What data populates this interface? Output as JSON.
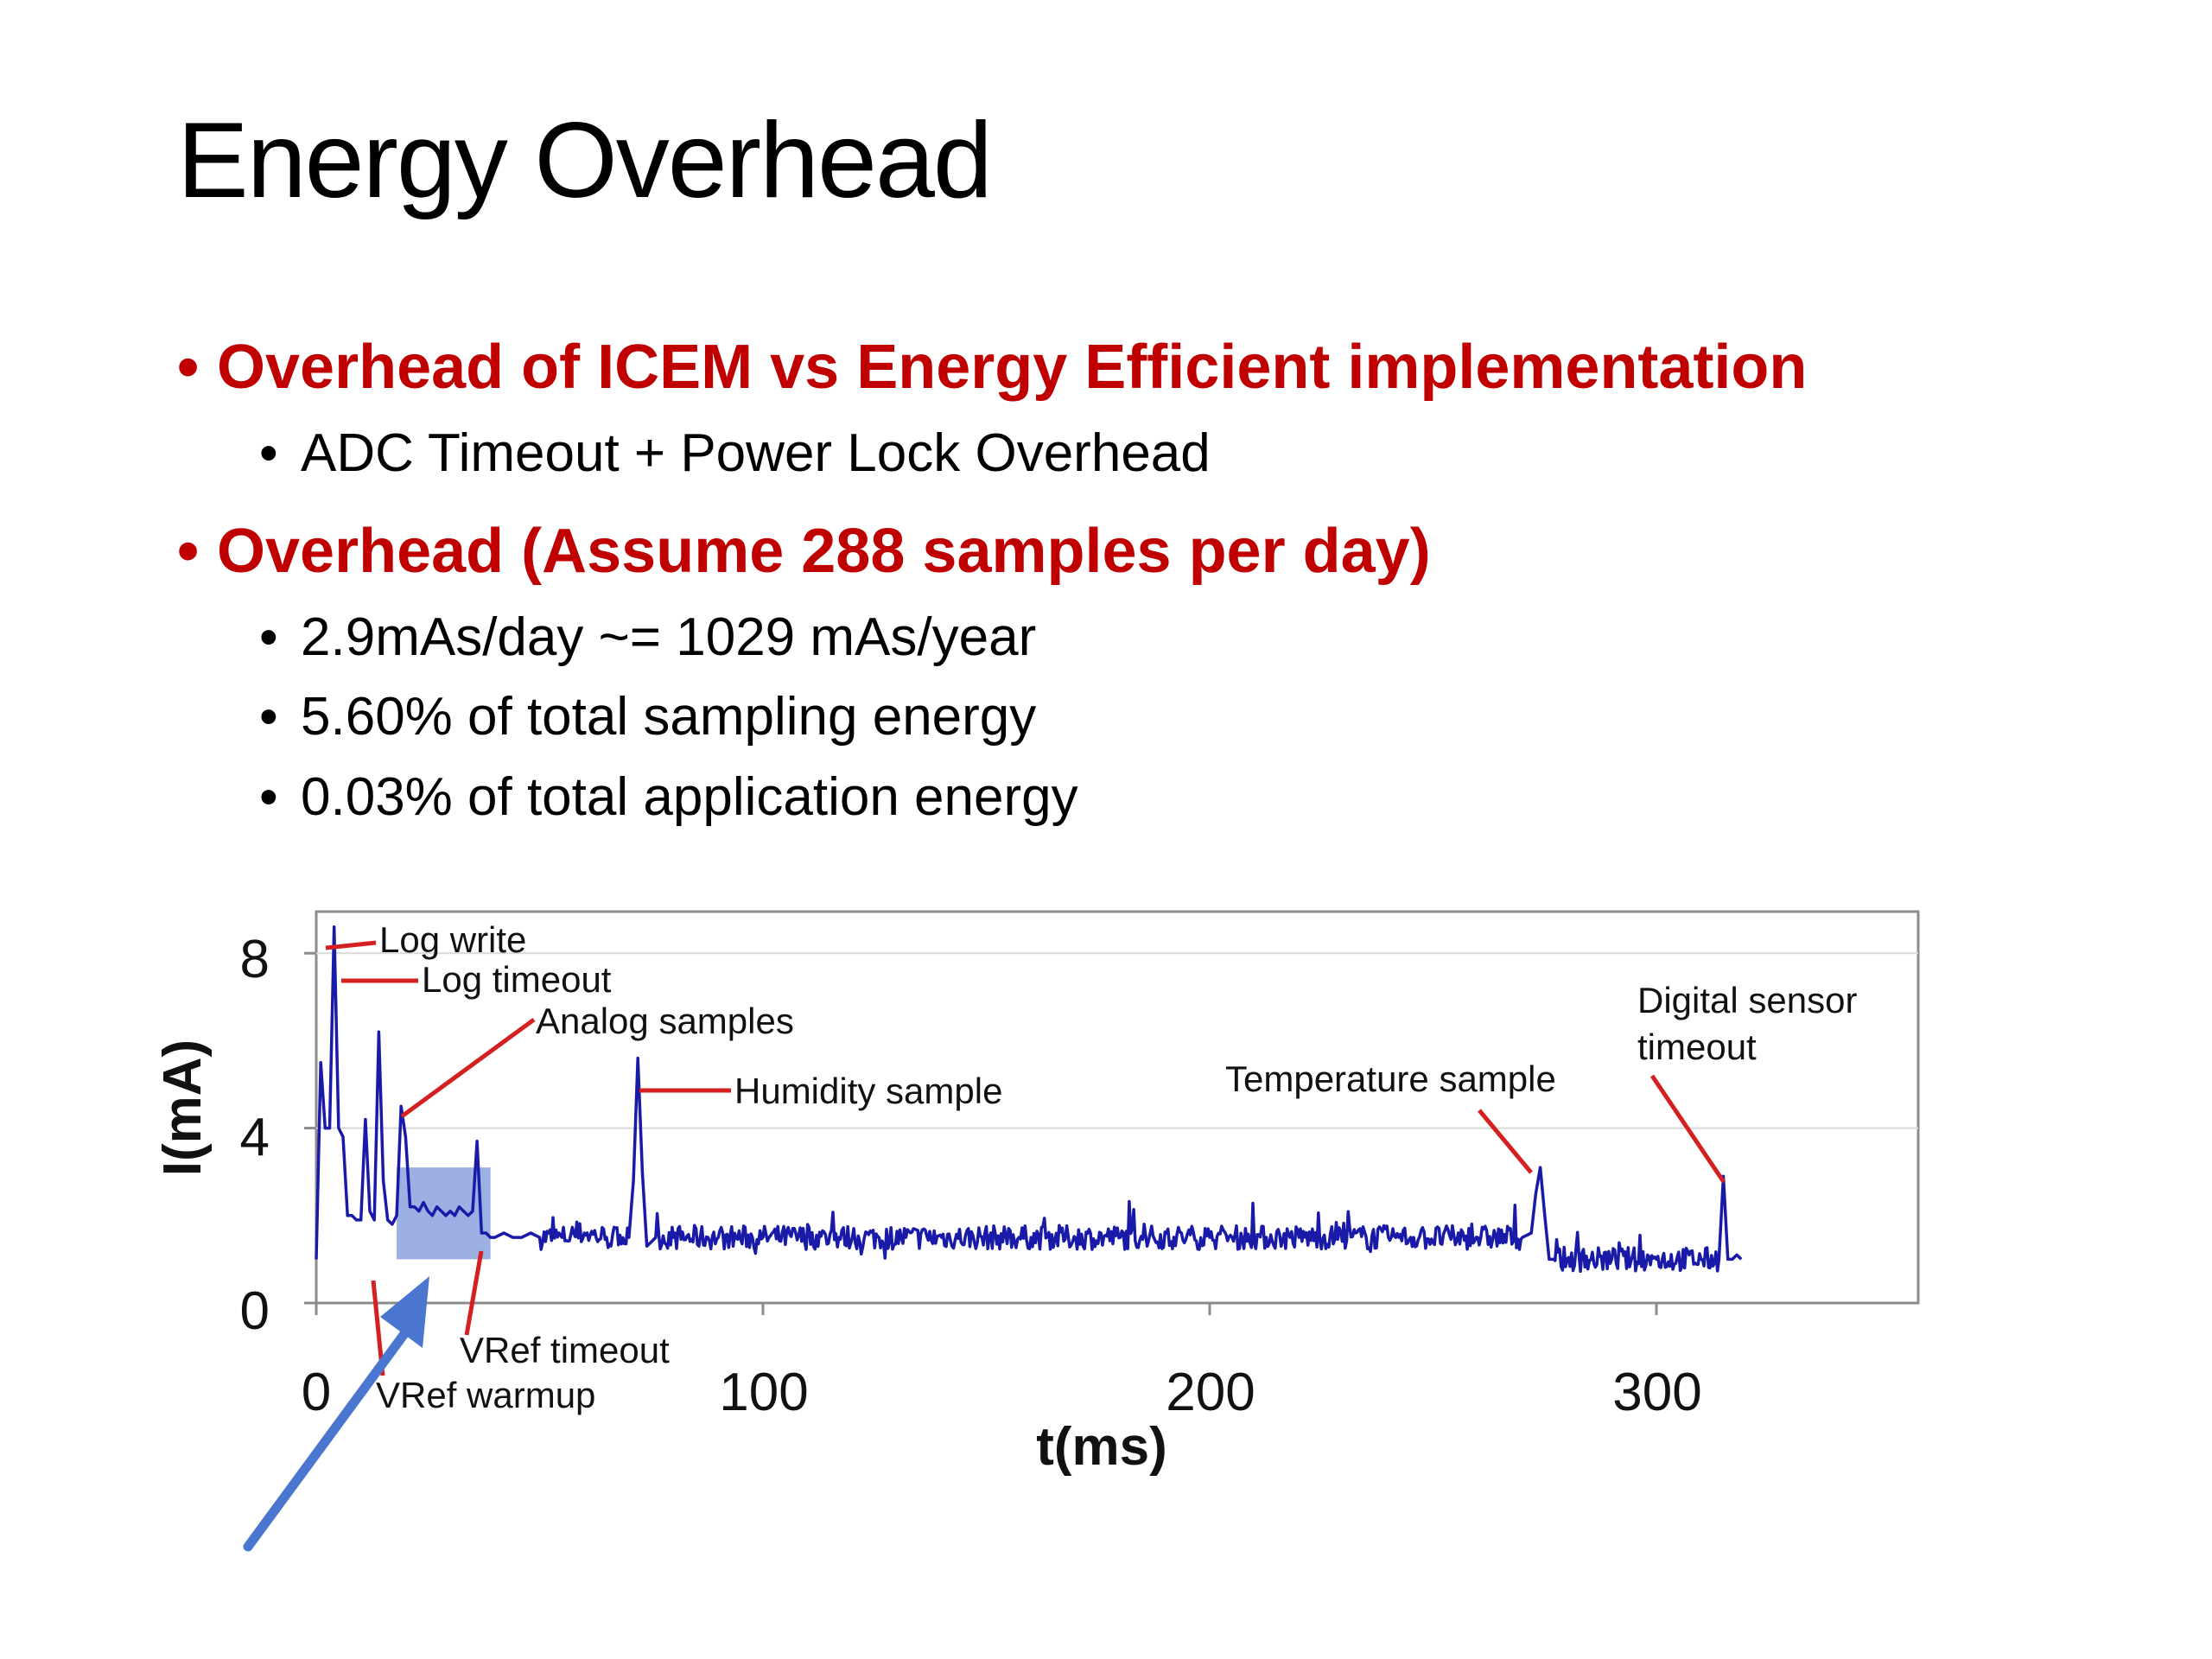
{
  "slide": {
    "title": "Energy Overhead",
    "bullets": [
      {
        "text": "Overhead of ICEM vs Energy Efficient implementation",
        "level": 1,
        "sub": [
          {
            "text": "ADC Timeout + Power Lock Overhead"
          }
        ]
      },
      {
        "text": "Overhead (Assume 288 samples per day)",
        "level": 1,
        "sub": [
          {
            "text": "2.9mAs/day ~= 1029 mAs/year"
          },
          {
            "text": "5.60% of total sampling energy"
          },
          {
            "text": "0.03% of total application energy"
          }
        ]
      }
    ],
    "bullet_glyph": "•",
    "colors": {
      "heading_bullet": "#c00000",
      "trace": "#1a1aa8",
      "annotation_line": "#d42020",
      "highlight": "#7b97da",
      "arrow": "#4a76cf"
    }
  },
  "chart_data": {
    "type": "line",
    "xlabel": "t(ms)",
    "ylabel": "I(mA)",
    "xlim": [
      0,
      360
    ],
    "ylim": [
      0,
      9
    ],
    "xticks": [
      0,
      100,
      200,
      300
    ],
    "yticks": [
      0,
      4,
      8
    ],
    "grid": "horizontal",
    "series": [
      {
        "x": [
          0,
          1,
          2,
          3,
          4,
          5,
          6,
          7,
          8,
          9,
          10,
          11,
          12,
          13,
          14,
          15,
          16,
          17,
          18,
          19,
          20,
          21,
          22,
          23,
          24,
          25,
          26,
          27,
          28,
          29,
          30,
          31,
          32,
          33,
          34,
          35,
          36,
          37,
          38,
          39,
          40,
          42,
          44,
          46,
          48,
          50,
          55,
          60,
          65,
          70,
          71,
          72,
          73,
          74,
          75,
          76,
          80,
          90,
          100,
          120,
          140,
          160,
          180,
          200,
          220,
          240,
          260,
          270,
          272,
          273,
          274,
          275,
          276,
          277,
          280,
          290,
          300,
          310,
          314,
          315,
          316,
          317,
          318,
          319
        ],
        "y": [
          1.0,
          5.5,
          4.0,
          4.0,
          8.6,
          4.0,
          3.8,
          2.0,
          2.0,
          1.9,
          1.9,
          4.2,
          2.1,
          1.9,
          6.2,
          2.8,
          1.9,
          1.8,
          2.0,
          4.5,
          3.8,
          2.2,
          2.2,
          2.1,
          2.3,
          2.1,
          2.0,
          2.2,
          2.1,
          2.0,
          2.1,
          2.0,
          2.2,
          2.1,
          2.0,
          2.1,
          3.7,
          1.6,
          1.6,
          1.5,
          1.5,
          1.6,
          1.5,
          1.5,
          1.6,
          1.5,
          1.5,
          1.6,
          1.5,
          1.5,
          2.8,
          5.6,
          3.0,
          1.3,
          1.4,
          1.5,
          1.5,
          1.5,
          1.5,
          1.5,
          1.5,
          1.5,
          1.5,
          1.5,
          1.5,
          1.5,
          1.5,
          1.5,
          1.6,
          2.5,
          3.1,
          2.0,
          1.0,
          1.0,
          1.0,
          1.0,
          1.0,
          1.0,
          1.0,
          2.9,
          1.0,
          1.0,
          1.1,
          1.0
        ]
      }
    ],
    "highlight_region": {
      "x": [
        18,
        39
      ],
      "y": [
        1.0,
        3.1
      ]
    },
    "annotations": [
      {
        "text": "Log write",
        "x": 4,
        "y": 8.6
      },
      {
        "text": "Log timeout",
        "x": 5,
        "y": 7.4
      },
      {
        "text": "Analog samples",
        "x": 19,
        "y": 4.5
      },
      {
        "text": "Humidity sample",
        "x": 72,
        "y": 5.0
      },
      {
        "text": "Temperature sample",
        "x": 273,
        "y": 3.0
      },
      {
        "text": "Digital sensor",
        "x": 316,
        "y": 2.9
      },
      {
        "text": "timeout",
        "x": 316,
        "y": 2.9
      },
      {
        "text": "VRef timeout",
        "x": 38,
        "y": 1.6
      },
      {
        "text": "VRef warmup",
        "x": 13,
        "y": 1.9
      }
    ]
  }
}
